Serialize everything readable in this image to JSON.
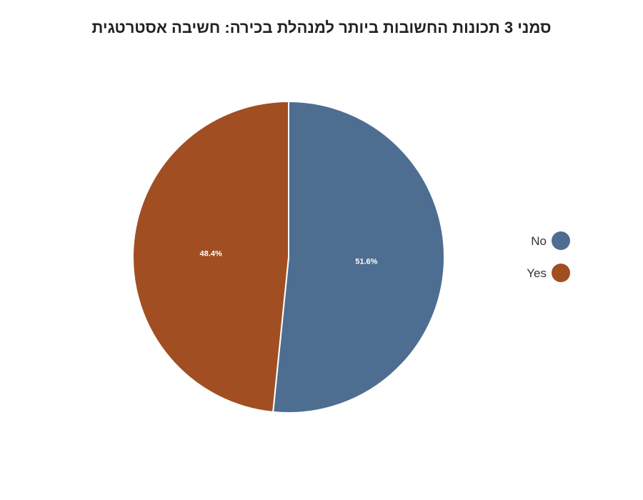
{
  "chart_data": {
    "type": "pie",
    "title": "סמני 3 תכונות החשובות ביותר למנהלת בכירה: חשיבה אסטרטגית",
    "slices": [
      {
        "label": "No",
        "value": 51.6,
        "display": "51.6%",
        "color": "#4e6e91"
      },
      {
        "label": "Yes",
        "value": 48.4,
        "display": "48.4%",
        "color": "#a04e22"
      }
    ],
    "legend_position": "right"
  }
}
